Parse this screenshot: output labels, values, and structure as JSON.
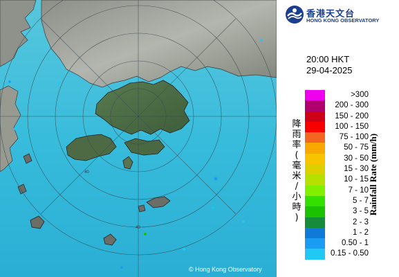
{
  "header": {
    "org_name_cn": "香港天文台",
    "org_name_en": "HONG KONG OBSERVATORY"
  },
  "map": {
    "copyright": "© Hong Kong Observatory",
    "range_ring_labels": [
      "40",
      "40"
    ]
  },
  "timestamp": {
    "time": "20:00 HKT",
    "date": "29-04-2025"
  },
  "legend": {
    "title_cn": "降雨率(毫米/小時)",
    "title_en": "Rainfall Rate (mm/h)",
    "items": [
      {
        "label": ">300",
        "color": "#ee00ee"
      },
      {
        "label": "200 - 300",
        "color": "#b0006e"
      },
      {
        "label": "150 - 200",
        "color": "#ce0018"
      },
      {
        "label": "100 - 150",
        "color": "#f80000"
      },
      {
        "label": "75 - 100",
        "color": "#f26622"
      },
      {
        "label": "50 - 75",
        "color": "#f8a800"
      },
      {
        "label": "30 - 50",
        "color": "#f8c400"
      },
      {
        "label": "15 - 30",
        "color": "#dcd000"
      },
      {
        "label": "10 - 15",
        "color": "#b6e000"
      },
      {
        "label": "7 - 10",
        "color": "#80f000"
      },
      {
        "label": "5 - 7",
        "color": "#33e000"
      },
      {
        "label": "3 - 5",
        "color": "#1bc200"
      },
      {
        "label": "2 - 3",
        "color": "#168c3a"
      },
      {
        "label": "1 - 2",
        "color": "#0f7ad8"
      },
      {
        "label": "0.50 - 1",
        "color": "#1a9cf2"
      },
      {
        "label": "0.15 - 0.50",
        "color": "#20c8f4"
      }
    ]
  }
}
